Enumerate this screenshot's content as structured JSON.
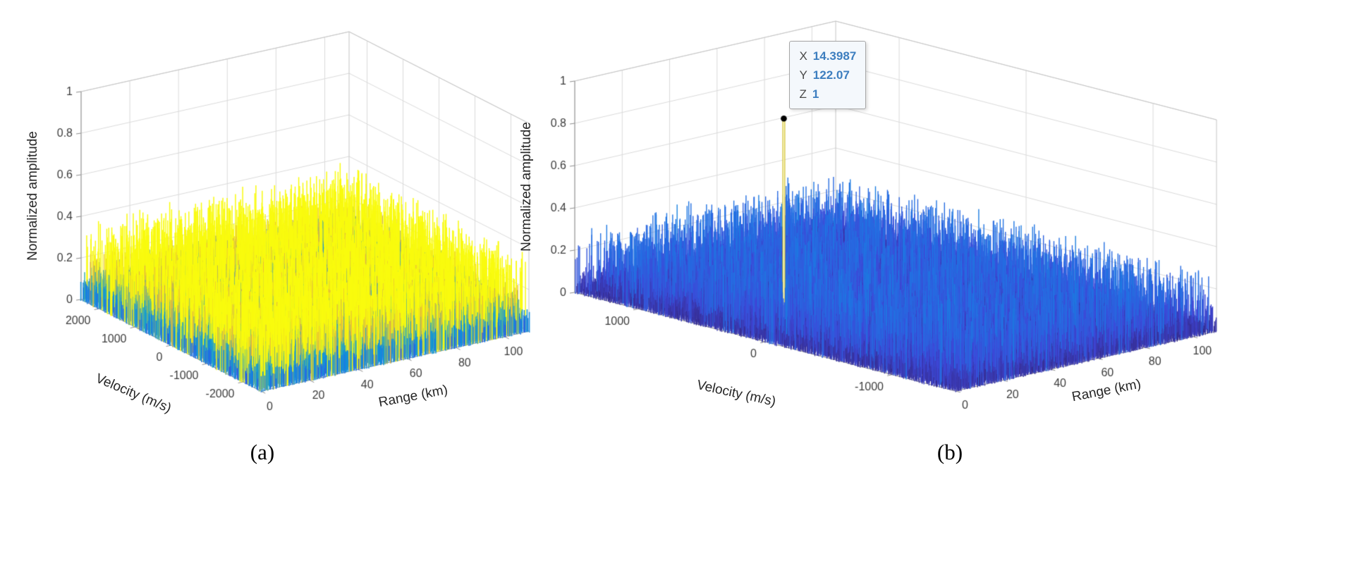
{
  "figure": {
    "background": "#ffffff",
    "captions": {
      "a": "(a)",
      "b": "(b)"
    },
    "datatip": {
      "rows": [
        {
          "label": "X",
          "value": "14.3987"
        },
        {
          "label": "Y",
          "value": "122.07"
        },
        {
          "label": "Z",
          "value": "1"
        }
      ],
      "value_color": "#3d7ebf",
      "background": "#f4f8fc",
      "border_color": "#a6a6a6"
    }
  },
  "chart_data": [
    {
      "type": "surface3d",
      "panel": "a",
      "title": "",
      "xlabel": "Range (km)",
      "ylabel": "Velocity (m/s)",
      "zlabel": "Normalized amplitude",
      "x_ticks": [
        0,
        20,
        40,
        60,
        80,
        100
      ],
      "x_lim": [
        0,
        110
      ],
      "y_ticks": [
        2000,
        1000,
        0,
        -1000,
        -2000
      ],
      "y_lim": [
        -2500,
        2500
      ],
      "z_ticks": [
        0,
        0.2,
        0.4,
        0.6,
        0.8,
        1
      ],
      "z_lim": [
        0,
        1
      ],
      "colormap": "parula",
      "grid": true,
      "legend": false,
      "view": {
        "azimuth": -37.5,
        "elevation": 30
      },
      "content": "Dense uniform random noise floor over the whole range-velocity plane, normalized amplitude ~0.03-0.4, multicolor parula speckle, no dominant target peak",
      "noise": {
        "base": 0.045,
        "uniform": 0.06,
        "tail": 0.3,
        "tail_pow": 4,
        "color_scale": 0.24,
        "skip": 0
      }
    },
    {
      "type": "surface3d",
      "panel": "b",
      "title": "",
      "xlabel": "Range (km)",
      "ylabel": "Velocity (m/s)",
      "zlabel": "Normalized amplitude",
      "x_ticks": [
        0,
        20,
        40,
        60,
        80,
        100
      ],
      "x_lim": [
        0,
        110
      ],
      "y_ticks": [
        1000,
        0,
        -1000
      ],
      "y_lim": [
        -1500,
        1500
      ],
      "z_ticks": [
        0,
        0.2,
        0.4,
        0.6,
        0.8,
        1
      ],
      "z_lim": [
        0,
        1
      ],
      "colormap": "parula",
      "grid": true,
      "legend": false,
      "view": {
        "azimuth": -37.5,
        "elevation": 30
      },
      "content": "Low dark-blue noise floor (amplitude ~0.02-0.25) with a single dominant yellow peak of normalized amplitude 1 at range 14.3987 km and velocity 122.07 m/s, marked with a datatip",
      "peak": {
        "x": 14.3987,
        "y": 122.07,
        "z": 1
      },
      "noise": {
        "base": 0.02,
        "uniform": 0.05,
        "tail": 0.25,
        "tail_pow": 5,
        "color_scale": 1.0,
        "skip": 0.06
      }
    }
  ]
}
